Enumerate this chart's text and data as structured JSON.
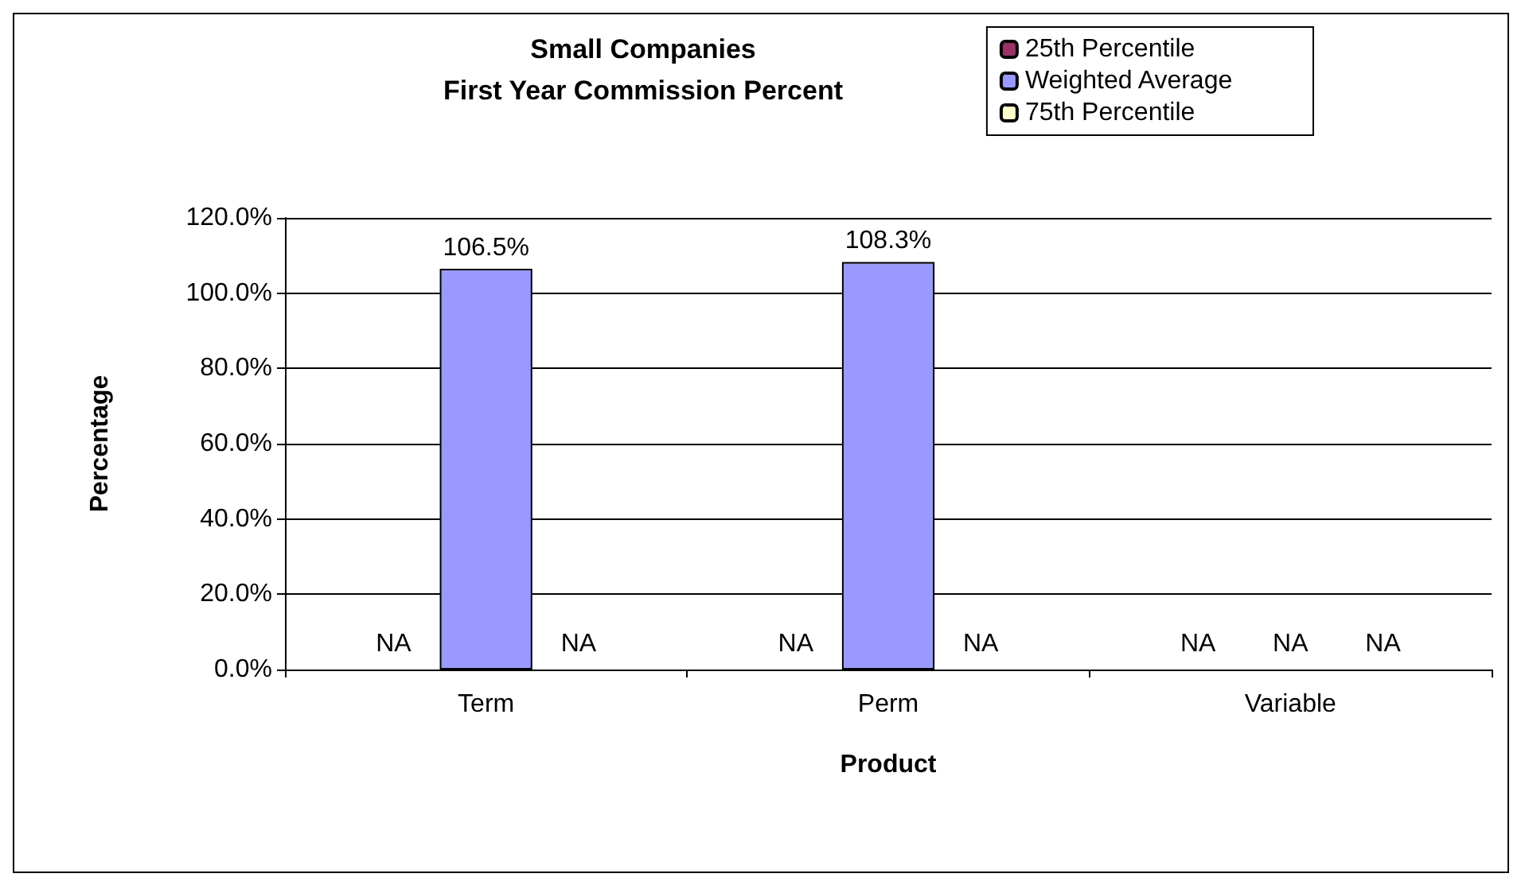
{
  "chart_data": {
    "type": "bar",
    "title": "Small Companies\nFirst Year Commission Percent",
    "xlabel": "Product",
    "ylabel": "Percentage",
    "categories": [
      "Term",
      "Perm",
      "Variable"
    ],
    "series": [
      {
        "name": "25th Percentile",
        "color": "#993366",
        "values": [
          null,
          null,
          null
        ],
        "value_labels": [
          "NA",
          "NA",
          "NA"
        ]
      },
      {
        "name": "Weighted Average",
        "color": "#9999ff",
        "values": [
          106.5,
          108.3,
          null
        ],
        "value_labels": [
          "106.5%",
          "108.3%",
          "NA"
        ]
      },
      {
        "name": "75th Percentile",
        "color": "#ffffcc",
        "values": [
          null,
          null,
          null
        ],
        "value_labels": [
          "NA",
          "NA",
          "NA"
        ]
      }
    ],
    "ylim": [
      0,
      120
    ],
    "yticks": [
      {
        "value": 0,
        "label": "0.0%"
      },
      {
        "value": 20,
        "label": "20.0%"
      },
      {
        "value": 40,
        "label": "40.0%"
      },
      {
        "value": 60,
        "label": "60.0%"
      },
      {
        "value": 80,
        "label": "80.0%"
      },
      {
        "value": 100,
        "label": "100.0%"
      },
      {
        "value": 120,
        "label": "120.0%"
      }
    ],
    "grid": "y",
    "legend": "top right"
  }
}
